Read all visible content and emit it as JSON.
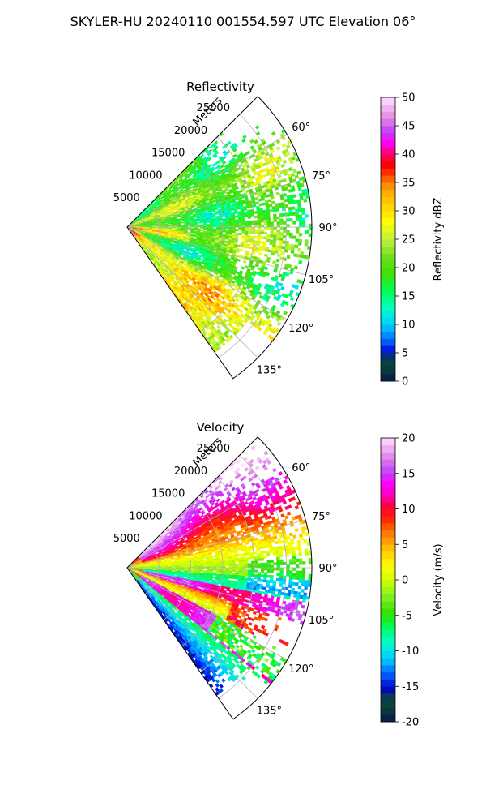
{
  "figure": {
    "title": "SKYLER-HU  20240110  001554.597 UTC Elevation 06°"
  },
  "chart_data": [
    {
      "type": "heatmap",
      "title": "Reflectivity",
      "range_axis_label": "Meters",
      "range_ticks": [
        5000,
        10000,
        15000,
        20000,
        25000
      ],
      "range_tick_labels": [
        "5000",
        "10000",
        "15000",
        "20000",
        "25000"
      ],
      "range_max_m": 29000,
      "azimuth_range_deg": [
        45,
        145
      ],
      "azimuth_ticks_deg": [
        60,
        75,
        90,
        105,
        120,
        135
      ],
      "azimuth_tick_labels": [
        "60°",
        "75°",
        "90°",
        "105°",
        "120°",
        "135°"
      ],
      "grid": true,
      "colorbar": {
        "label": "Reflectivity dBZ",
        "range": [
          0,
          50
        ],
        "ticks": [
          0,
          5,
          10,
          15,
          20,
          25,
          30,
          35,
          40,
          45,
          50
        ],
        "tick_labels": [
          "0",
          "5",
          "10",
          "15",
          "20",
          "25",
          "30",
          "35",
          "40",
          "45",
          "50"
        ]
      },
      "field_summary": "mostly 15-28 dBZ; 28-35 dBZ near radar and along the 120-140° edge; widespread gaps at long range"
    },
    {
      "type": "heatmap",
      "title": "Velocity",
      "range_axis_label": "Meters",
      "range_ticks": [
        5000,
        10000,
        15000,
        20000,
        25000
      ],
      "range_tick_labels": [
        "5000",
        "10000",
        "15000",
        "20000",
        "25000"
      ],
      "range_max_m": 29000,
      "azimuth_range_deg": [
        45,
        145
      ],
      "azimuth_ticks_deg": [
        60,
        75,
        90,
        105,
        120,
        135
      ],
      "azimuth_tick_labels": [
        "60°",
        "75°",
        "90°",
        "105°",
        "120°",
        "135°"
      ],
      "grid": true,
      "colorbar": {
        "label": "Velocity (m/s)",
        "range": [
          -20,
          20
        ],
        "ticks": [
          -20,
          -15,
          -10,
          -5,
          0,
          5,
          10,
          15,
          20
        ],
        "tick_labels": [
          "-20",
          "-15",
          "-10",
          "-5",
          "0",
          "5",
          "10",
          "15",
          "20"
        ]
      },
      "field_summary": "+7 to +14 m/s near 55-70°; 0 to +5 m/s near 80-95°; -5 to -10 m/s near 95-102°; +12 to +17 m/s band near 103-110° and 120-130°; -5 to -15 m/s beyond 130°"
    }
  ]
}
